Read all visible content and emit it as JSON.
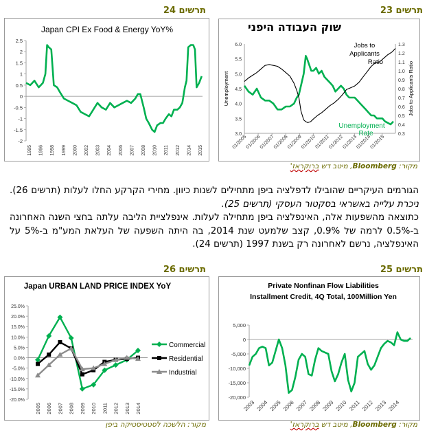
{
  "figures": {
    "fig23": {
      "label": "תרשים 23",
      "title": "שוק העבודה היפני",
      "source_prefix": "מקור: ",
      "source_brand": "Bloomberg",
      "source_suffix": ", מיטב דש ",
      "source_underlined": "ברוקראז'"
    },
    "fig24": {
      "label": "תרשים 24"
    },
    "fig25": {
      "label": "תרשים 25",
      "source_prefix": "מקור: ",
      "source_brand": "Bloomberg",
      "source_suffix": ", מיטב דש ",
      "source_underlined": "ברוקראז'"
    },
    "fig26": {
      "label": "תרשים 26",
      "source": "מקור: הלשכה לסטטיסטיקה ביפן"
    }
  },
  "body": {
    "p1_a": "הגורמים העיקריים שהובילו לדפלציה ביפן מתחילים לשנות כיוון. מחירי הקרקע החלו לעלות (תרשים 26). ",
    "p1_b": "ניכרת עלייה באשראי בסקטור העסקי (תרשים 25).",
    "p2": "כתוצאה מהשפעות אלה, האינפלציה ביפן מתחילה לעלות. אינפלציית הליבה עלתה בחצי השנה האחרונה ב-0.5% לרמה של 0.9%, קצב שלמעט שנת 2014, בה היתה השפעה של העלאת המע\"מ ב-5% על האינפלציה, נרשם לאחרונה רק בשנת 1997 (תרשים 24)."
  },
  "chart_data": [
    {
      "id": "fig23",
      "type": "line",
      "title": "שוק העבודה היפני",
      "ylabel": "Unemployment",
      "y2label": "Jobs to Applicants Ratio",
      "ylim": [
        3.0,
        6.0
      ],
      "y_ticks": [
        "3.0",
        "3.5",
        "4.0",
        "4.5",
        "5.0",
        "5.5",
        "6.0"
      ],
      "y2lim": [
        0.3,
        1.3
      ],
      "y2_ticks": [
        "0.3",
        "0.4",
        "0.5",
        "0.6",
        "0.7",
        "0.8",
        "0.9",
        "1.0",
        "1.1",
        "1.2",
        "1.3"
      ],
      "x_ticks": [
        "01/2005",
        "01/2006",
        "01/2007",
        "01/2008",
        "01/2009",
        "01/2010",
        "01/2011",
        "01/2012",
        "01/2013",
        "01/2014",
        "01/2015"
      ],
      "x_start": 2005.0,
      "x_end": 2015.95,
      "series": [
        {
          "name": "Unemployment Rate",
          "color": "#00b050",
          "axis": "left",
          "x": [
            2005.0,
            2005.3,
            2005.6,
            2005.9,
            2006.2,
            2006.5,
            2006.8,
            2007.1,
            2007.4,
            2007.7,
            2008.0,
            2008.3,
            2008.6,
            2008.8,
            2008.95,
            2009.1,
            2009.3,
            2009.45,
            2009.55,
            2009.7,
            2009.85,
            2010.0,
            2010.2,
            2010.4,
            2010.6,
            2010.8,
            2011.0,
            2011.2,
            2011.4,
            2011.6,
            2011.8,
            2012.0,
            2012.2,
            2012.4,
            2012.6,
            2012.8,
            2013.0,
            2013.2,
            2013.4,
            2013.6,
            2013.8,
            2014.0,
            2014.2,
            2014.4,
            2014.6,
            2014.8,
            2015.0,
            2015.2,
            2015.4,
            2015.6,
            2015.8
          ],
          "y": [
            4.6,
            4.4,
            4.3,
            4.5,
            4.2,
            4.1,
            4.1,
            4.0,
            3.8,
            3.8,
            3.9,
            3.9,
            4.0,
            4.2,
            4.3,
            4.6,
            5.0,
            5.6,
            5.5,
            5.3,
            5.1,
            5.1,
            5.2,
            5.0,
            5.1,
            4.9,
            4.8,
            4.7,
            4.6,
            4.4,
            4.5,
            4.6,
            4.5,
            4.3,
            4.2,
            4.2,
            4.2,
            4.1,
            4.0,
            3.9,
            3.8,
            3.7,
            3.6,
            3.6,
            3.5,
            3.5,
            3.5,
            3.4,
            3.35,
            3.3,
            3.4
          ]
        },
        {
          "name": "Jobs to Applicants Ratio",
          "color": "#000000",
          "axis": "right",
          "x": [
            2005.0,
            2005.3,
            2005.6,
            2005.9,
            2006.2,
            2006.5,
            2006.8,
            2007.1,
            2007.4,
            2007.7,
            2008.0,
            2008.3,
            2008.6,
            2008.8,
            2008.95,
            2009.1,
            2009.3,
            2009.45,
            2009.6,
            2009.8,
            2010.0,
            2010.3,
            2010.6,
            2010.9,
            2011.2,
            2011.5,
            2011.8,
            2012.1,
            2012.4,
            2012.7,
            2013.0,
            2013.3,
            2013.6,
            2013.9,
            2014.2,
            2014.5,
            2014.8,
            2015.1,
            2015.4,
            2015.7,
            2015.95
          ],
          "y": [
            0.88,
            0.92,
            0.95,
            0.98,
            1.02,
            1.06,
            1.07,
            1.06,
            1.05,
            1.02,
            0.98,
            0.94,
            0.86,
            0.78,
            0.7,
            0.55,
            0.45,
            0.43,
            0.42,
            0.43,
            0.46,
            0.5,
            0.53,
            0.57,
            0.61,
            0.64,
            0.68,
            0.73,
            0.79,
            0.81,
            0.83,
            0.87,
            0.93,
            0.99,
            1.05,
            1.09,
            1.1,
            1.14,
            1.18,
            1.21,
            1.25
          ]
        }
      ],
      "annotations": [
        "Jobs to",
        "Applicants",
        "Ratio",
        "Unemployment",
        "Rate"
      ]
    },
    {
      "id": "fig24",
      "type": "line",
      "title": "Japan CPI Ex Food & Energy YoY%",
      "ylim": [
        -2.0,
        2.5
      ],
      "y_ticks": [
        "2.5",
        "2",
        "1.5",
        "1",
        "0.5",
        "0",
        "-0.5",
        "-1",
        "-1.5",
        "-2"
      ],
      "x_ticks": [
        "1995",
        "1996",
        "1998",
        "1999",
        "2000",
        "2002",
        "2003",
        "2004",
        "2006",
        "2007",
        "2008",
        "2010",
        "2011",
        "2012",
        "2014",
        "2015"
      ],
      "x_start": 1995.0,
      "x_end": 2016.0,
      "series": [
        {
          "name": "",
          "color": "#00b050",
          "x": [
            1995.0,
            1995.5,
            1996.0,
            1996.5,
            1997.0,
            1997.3,
            1997.5,
            1997.7,
            1998.0,
            1998.3,
            1998.7,
            1999.0,
            1999.5,
            2000.0,
            2000.5,
            2001.0,
            2001.5,
            2002.0,
            2002.5,
            2003.0,
            2003.5,
            2004.0,
            2004.5,
            2005.0,
            2005.5,
            2006.0,
            2006.5,
            2007.0,
            2007.5,
            2008.0,
            2008.3,
            2008.6,
            2009.0,
            2009.3,
            2009.6,
            2010.0,
            2010.3,
            2010.6,
            2011.0,
            2011.3,
            2011.6,
            2012.0,
            2012.3,
            2012.6,
            2013.0,
            2013.3,
            2013.6,
            2013.9,
            2014.1,
            2014.3,
            2014.6,
            2014.9,
            2015.1,
            2015.3,
            2015.6,
            2015.9
          ],
          "y": [
            0.6,
            0.5,
            0.7,
            0.4,
            0.6,
            1.0,
            2.3,
            2.2,
            2.1,
            0.5,
            0.4,
            0.2,
            -0.1,
            -0.2,
            -0.3,
            -0.4,
            -0.7,
            -0.8,
            -0.9,
            -0.6,
            -0.3,
            -0.5,
            -0.6,
            -0.3,
            -0.5,
            -0.4,
            -0.3,
            -0.2,
            -0.3,
            -0.1,
            0.1,
            0.1,
            -0.5,
            -1.0,
            -1.2,
            -1.5,
            -1.6,
            -1.3,
            -1.2,
            -1.2,
            -1.0,
            -0.8,
            -0.9,
            -0.6,
            -0.6,
            -0.5,
            -0.3,
            0.4,
            0.7,
            2.2,
            2.3,
            2.3,
            2.1,
            0.4,
            0.6,
            0.9
          ]
        }
      ]
    },
    {
      "id": "fig25",
      "type": "line",
      "title": "Private Nonfinan Flow Liabilities Installment Credit, 4Q Total, 100Million Yen",
      "ylim": [
        -20000,
        5000
      ],
      "y_ticks": [
        "5,000",
        "0",
        "-5,000",
        "-10,000",
        "-15,000",
        "-20,000"
      ],
      "x_ticks": [
        "2003",
        "2004",
        "2005",
        "2006",
        "2007",
        "2008",
        "2009",
        "2010",
        "2011",
        "2012",
        "2013",
        "2014"
      ],
      "x_start": 2003.0,
      "x_end": 2015.4,
      "series": [
        {
          "name": "",
          "color": "#00b050",
          "x": [
            2003.0,
            2003.25,
            2003.5,
            2003.75,
            2004.0,
            2004.25,
            2004.5,
            2004.75,
            2005.0,
            2005.25,
            2005.5,
            2005.75,
            2006.0,
            2006.25,
            2006.5,
            2006.75,
            2007.0,
            2007.25,
            2007.5,
            2007.75,
            2008.0,
            2008.25,
            2008.5,
            2008.75,
            2009.0,
            2009.25,
            2009.5,
            2009.75,
            2010.0,
            2010.25,
            2010.5,
            2010.75,
            2011.0,
            2011.25,
            2011.5,
            2011.75,
            2012.0,
            2012.25,
            2012.5,
            2012.75,
            2013.0,
            2013.25,
            2013.5,
            2013.75,
            2014.0,
            2014.25,
            2014.5,
            2014.75,
            2015.0,
            2015.25
          ],
          "y": [
            -9000,
            -6000,
            -5000,
            -3000,
            -2500,
            -3000,
            -9000,
            -8000,
            -4000,
            0,
            -3000,
            -9000,
            -18500,
            -17500,
            -13000,
            -7000,
            -5000,
            -6000,
            -12000,
            -12500,
            -7000,
            -3000,
            -4000,
            -4500,
            -5000,
            -11000,
            -14500,
            -12000,
            -8000,
            -5000,
            -14000,
            -18000,
            -15000,
            -6000,
            -5000,
            -4000,
            -8500,
            -10500,
            -9000,
            -6000,
            -3000,
            -1500,
            -500,
            -1000,
            -2000,
            2500,
            0,
            -500,
            -500,
            500
          ]
        }
      ]
    },
    {
      "id": "fig26",
      "type": "line",
      "title": "Japan URBAN LAND PRICE INDEX YoY",
      "ylim": [
        -20.0,
        25.0
      ],
      "y_ticks": [
        "25.0%",
        "20.0%",
        "15.0%",
        "10.0%",
        "5.0%",
        "0.0%",
        "-5.0%",
        "-10.0%",
        "-15.0%",
        "-20.0%"
      ],
      "x_ticks": [
        "2005",
        "2006",
        "2007",
        "2008",
        "2009",
        "2010",
        "2011",
        "2012",
        "2013",
        "2014"
      ],
      "legend": "right",
      "series": [
        {
          "name": "Commercial",
          "color": "#00b050",
          "marker": "diamond",
          "y": [
            -1.0,
            10.5,
            19.5,
            9.5,
            -15.0,
            -13.0,
            -6.0,
            -3.5,
            -1.0,
            3.5
          ]
        },
        {
          "name": "Residential",
          "color": "#000000",
          "marker": "square",
          "y": [
            -3.0,
            1.5,
            7.5,
            4.5,
            -8.0,
            -6.0,
            -2.0,
            -1.0,
            -0.5,
            0.0
          ]
        },
        {
          "name": "Industrial",
          "color": "#8c8c8c",
          "marker": "triangle",
          "y": [
            -8.5,
            -3.5,
            1.5,
            4.5,
            -5.5,
            -5.0,
            -3.0,
            -1.0,
            0.0,
            -0.5
          ]
        }
      ]
    }
  ]
}
